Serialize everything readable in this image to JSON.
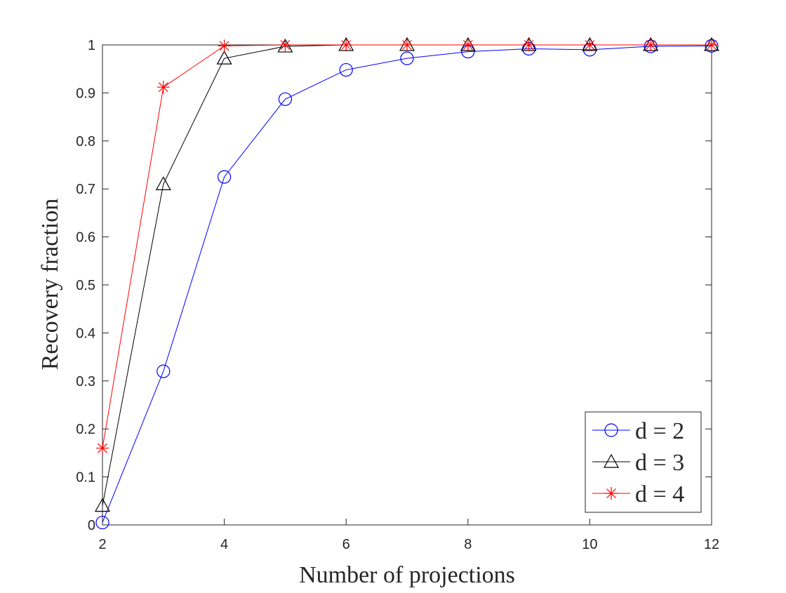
{
  "chart_data": {
    "type": "line",
    "title": "",
    "xlabel": "Number of projections",
    "ylabel": "Recovery fraction",
    "xlim": [
      2,
      12
    ],
    "ylim": [
      0,
      1
    ],
    "x_ticks": [
      2,
      4,
      6,
      8,
      10,
      12
    ],
    "y_ticks": [
      0,
      0.1,
      0.2,
      0.3,
      0.4,
      0.5,
      0.6,
      0.7,
      0.8,
      0.9,
      1
    ],
    "x_tick_labels": [
      "2",
      "4",
      "6",
      "8",
      "10",
      "12"
    ],
    "y_tick_labels": [
      "0",
      "0.1",
      "0.2",
      "0.3",
      "0.4",
      "0.5",
      "0.6",
      "0.7",
      "0.8",
      "0.9",
      "1"
    ],
    "grid": false,
    "legend_position": "bottom-right",
    "x": [
      2,
      3,
      4,
      5,
      6,
      7,
      8,
      9,
      10,
      11,
      12
    ],
    "series": [
      {
        "name": "d = 2",
        "marker": "circle",
        "color": "#0000ff",
        "values": [
          0.005,
          0.32,
          0.725,
          0.887,
          0.948,
          0.972,
          0.986,
          0.992,
          0.99,
          0.997,
          0.998
        ]
      },
      {
        "name": "d = 3",
        "marker": "triangle",
        "color": "#000000",
        "values": [
          0.04,
          0.71,
          0.972,
          0.997,
          1.0,
          1.0,
          1.0,
          1.0,
          1.0,
          1.0,
          1.0
        ]
      },
      {
        "name": "d = 4",
        "marker": "asterisk",
        "color": "#ff0000",
        "values": [
          0.16,
          0.912,
          0.998,
          1.0,
          1.0,
          1.0,
          1.0,
          1.0,
          1.0,
          1.0,
          1.0
        ]
      }
    ]
  }
}
